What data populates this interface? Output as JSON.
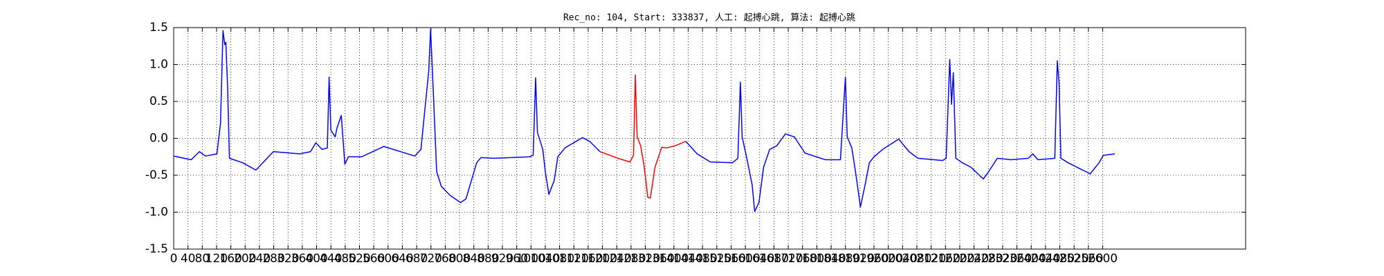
{
  "chart_data": {
    "type": "line",
    "title": "Rec_no: 104, Start: 333837, 人工: 起搏心跳, 算法: 起搏心跳",
    "x": [
      0,
      49,
      72,
      89,
      121,
      131,
      138,
      143,
      146,
      151,
      156,
      193,
      230,
      279,
      353,
      383,
      398,
      415,
      430,
      435,
      440,
      452,
      457,
      469,
      479,
      489,
      526,
      588,
      675,
      692,
      704,
      714,
      719,
      724,
      736,
      749,
      773,
      803,
      818,
      848,
      860,
      897,
      996,
      1006,
      1013,
      1018,
      1033,
      1040,
      1050,
      1065,
      1075,
      1095,
      1144,
      1164,
      1193,
      1243,
      1277,
      1287,
      1292,
      1297,
      1307,
      1317,
      1327,
      1334,
      1347,
      1366,
      1379,
      1404,
      1433,
      1465,
      1502,
      1564,
      1579,
      1586,
      1591,
      1604,
      1619,
      1626,
      1638,
      1651,
      1668,
      1688,
      1712,
      1737,
      1767,
      1824,
      1866,
      1880,
      1885,
      1898,
      1910,
      1922,
      1935,
      1947,
      1960,
      1984,
      2029,
      2058,
      2083,
      2152,
      2162,
      2172,
      2177,
      2182,
      2189,
      2207,
      2231,
      2266,
      2281,
      2305,
      2343,
      2392,
      2404,
      2419,
      2466,
      2473,
      2478,
      2483,
      2503,
      2540,
      2565,
      2590,
      2602,
      2634
    ],
    "series": [
      {
        "color": "#0000ff",
        "values": [
          -0.24,
          -0.29,
          -0.18,
          -0.24,
          -0.21,
          0.2,
          1.46,
          1.27,
          1.3,
          0.68,
          -0.27,
          -0.33,
          -0.43,
          -0.18,
          -0.21,
          -0.18,
          -0.06,
          -0.15,
          -0.13,
          0.83,
          0.11,
          0.02,
          0.14,
          0.31,
          -0.35,
          -0.25,
          -0.25,
          -0.11,
          -0.24,
          -0.15,
          0.44,
          0.92,
          1.48,
          0.92,
          -0.45,
          -0.65,
          -0.77,
          -0.87,
          -0.82,
          -0.33,
          -0.26,
          -0.27,
          -0.25,
          -0.23,
          0.82,
          0.08,
          -0.15,
          -0.45,
          -0.76,
          -0.57,
          -0.25,
          -0.13,
          0.01,
          -0.04,
          -0.18,
          null,
          null,
          null,
          null,
          null,
          null,
          null,
          null,
          null,
          null,
          null,
          null,
          null,
          -0.04,
          -0.21,
          -0.32,
          -0.33,
          -0.27,
          0.76,
          0.02,
          -0.27,
          -0.63,
          -0.99,
          -0.87,
          -0.39,
          -0.15,
          -0.1,
          0.06,
          0.02,
          -0.2,
          -0.29,
          -0.29,
          0.83,
          0.02,
          -0.13,
          -0.51,
          -0.93,
          -0.63,
          -0.33,
          -0.25,
          -0.15,
          -0.01,
          -0.18,
          -0.27,
          -0.3,
          -0.27,
          1.07,
          0.46,
          0.89,
          -0.27,
          -0.33,
          -0.39,
          -0.55,
          -0.45,
          -0.27,
          -0.29,
          -0.27,
          -0.21,
          -0.29,
          -0.27,
          1.05,
          0.74,
          -0.27,
          -0.33,
          -0.42,
          -0.48,
          -0.33,
          -0.23,
          -0.21
        ]
      },
      {
        "color": "#ff0000",
        "values": [
          null,
          null,
          null,
          null,
          null,
          null,
          null,
          null,
          null,
          null,
          null,
          null,
          null,
          null,
          null,
          null,
          null,
          null,
          null,
          null,
          null,
          null,
          null,
          null,
          null,
          null,
          null,
          null,
          null,
          null,
          null,
          null,
          null,
          null,
          null,
          null,
          null,
          null,
          null,
          null,
          null,
          null,
          null,
          null,
          null,
          null,
          null,
          null,
          null,
          null,
          null,
          null,
          null,
          null,
          -0.18,
          -0.27,
          -0.32,
          -0.23,
          0.86,
          0.02,
          -0.1,
          -0.39,
          -0.8,
          -0.81,
          -0.39,
          -0.12,
          -0.13,
          -0.1,
          -0.04,
          null,
          null,
          null,
          null,
          null,
          null,
          null,
          null,
          null,
          null,
          null,
          null,
          null,
          null,
          null,
          null,
          null,
          null,
          null,
          null,
          null,
          null,
          null,
          null,
          null,
          null,
          null,
          null,
          null,
          null,
          null,
          null,
          null,
          null,
          null,
          null,
          null,
          null,
          null,
          null,
          null,
          null,
          null,
          null,
          null,
          null,
          null,
          null,
          null,
          null,
          null,
          null,
          null,
          null,
          null
        ]
      }
    ],
    "xlim": [
      0,
      3000
    ],
    "xticks": [
      0,
      40,
      80,
      120,
      160,
      200,
      240,
      280,
      320,
      360,
      400,
      440,
      480,
      520,
      560,
      600,
      640,
      680,
      720,
      760,
      800,
      840,
      880,
      920,
      960,
      1000,
      1040,
      1080,
      1120,
      1160,
      1200,
      1240,
      1280,
      1320,
      1360,
      1400,
      1440,
      1480,
      1520,
      1560,
      1600,
      1640,
      1680,
      1720,
      1760,
      1800,
      1840,
      1880,
      1920,
      1960,
      2000,
      2040,
      2080,
      2120,
      2160,
      2200,
      2240,
      2280,
      2320,
      2360,
      2400,
      2440,
      2480,
      2520,
      2560,
      2600
    ],
    "ylim": [
      -1.5,
      1.5
    ],
    "yticks": [
      -1.5,
      {
        "value": -1,
        "label": "-1.0"
      },
      -0.5,
      {
        "value": 0,
        "label": "0.0"
      },
      0.5,
      {
        "value": 1,
        "label": "1.0"
      },
      1.5
    ],
    "grid": true
  }
}
